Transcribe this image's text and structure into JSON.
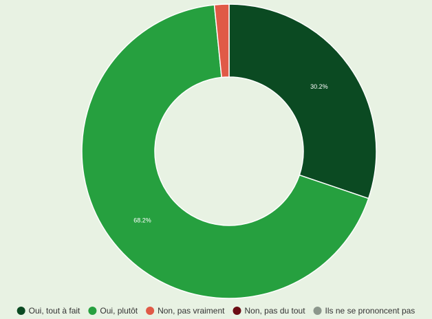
{
  "chart_data": {
    "type": "pie",
    "variant": "donut",
    "categories": [
      "Oui, tout à fait",
      "Oui, plutôt",
      "Non, pas vraiment",
      "Non, pas du tout",
      "Ils ne se prononcent pas"
    ],
    "values": [
      30.2,
      68.2,
      1.6,
      0,
      0
    ],
    "labels": [
      "30.2%",
      "68.2%",
      "",
      "",
      ""
    ],
    "colors": [
      "#0b4a22",
      "#26a03f",
      "#e05a47",
      "#6b0d14",
      "#8c978c"
    ],
    "legend_position": "bottom"
  }
}
